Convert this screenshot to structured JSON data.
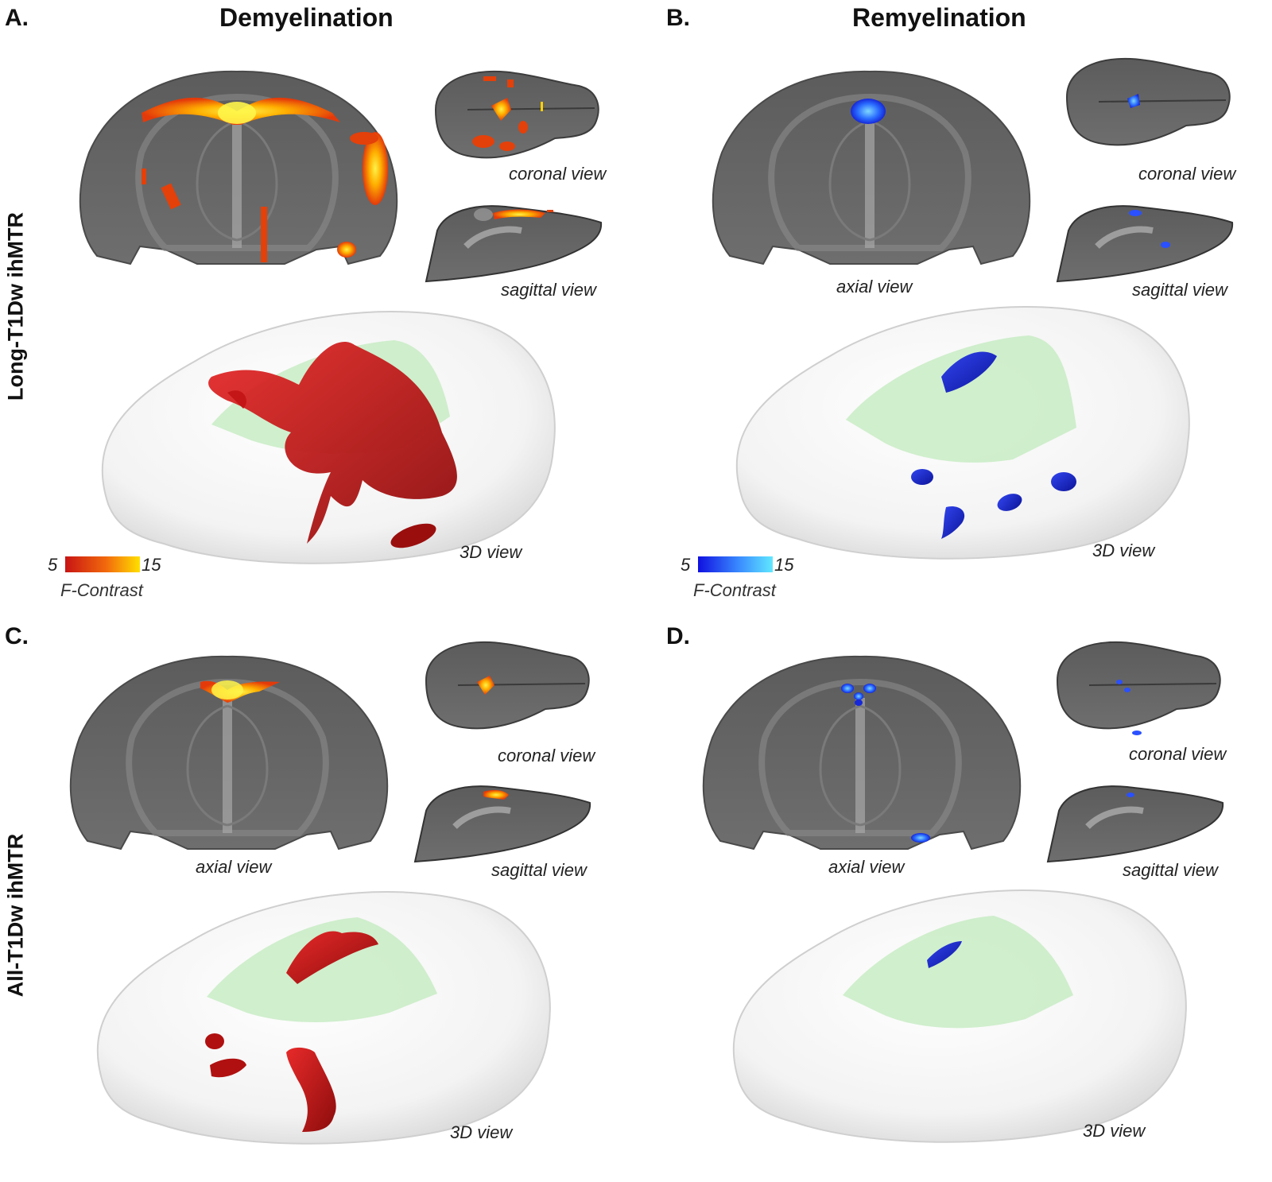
{
  "columns": {
    "A": {
      "letter": "A.",
      "title": "Demyelination"
    },
    "B": {
      "letter": "B.",
      "title": "Remyelination"
    },
    "C": {
      "letter": "C."
    },
    "D": {
      "letter": "D."
    }
  },
  "rows": {
    "top": "Long-T1Dw ihMTR",
    "bottom": "All-T1Dw ihMTR"
  },
  "view_labels": {
    "coronal": "coronal view",
    "sagittal": "sagittal view",
    "axial": "axial view",
    "three_d": "3D view"
  },
  "colorbars": {
    "demyelination": {
      "min": "5",
      "max": "15",
      "title": "F-Contrast",
      "colors": [
        "#c81414",
        "#ffe000"
      ]
    },
    "remyelination": {
      "min": "5",
      "max": "15",
      "title": "F-Contrast",
      "colors": [
        "#1010e0",
        "#60e8ff"
      ]
    }
  },
  "colors": {
    "brain_slice": "#6e6e6e",
    "demyelination_lesion": "#c41616",
    "remyelination_lesion": "#1a28d8",
    "white_matter_overlay": "#c8ecc4"
  }
}
